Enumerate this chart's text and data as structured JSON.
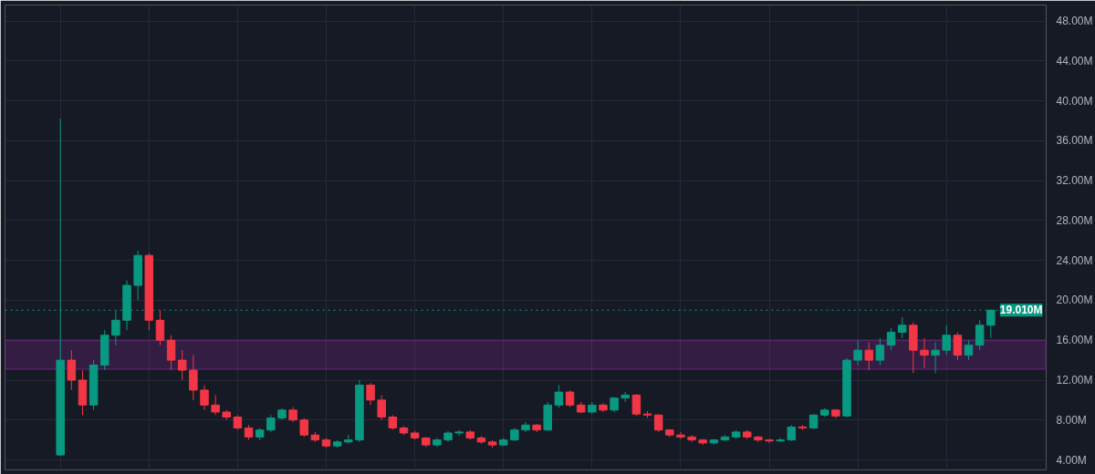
{
  "chart_data": {
    "type": "candlestick",
    "categories": [
      null,
      null,
      null,
      null,
      null,
      null,
      null,
      null,
      null,
      null,
      null,
      null,
      null,
      null,
      null,
      null,
      null,
      null,
      null,
      null,
      null,
      null,
      null,
      null,
      null,
      null,
      null,
      null,
      null,
      null,
      null,
      null,
      null,
      null,
      null,
      null,
      null,
      null,
      null,
      null,
      null,
      null,
      null,
      null,
      null,
      null,
      null,
      null,
      null,
      null,
      null,
      null,
      null,
      null,
      null,
      null,
      null,
      null,
      null,
      null,
      null,
      null,
      null,
      null,
      null,
      null,
      null,
      null,
      null,
      null,
      null,
      null,
      null,
      null,
      null,
      null,
      null,
      null,
      null,
      null,
      null,
      null,
      null,
      null,
      null
    ],
    "ohlc": [
      [
        4.5,
        38.2,
        4.4,
        14
      ],
      [
        14,
        15,
        11,
        12
      ],
      [
        12,
        13,
        8.5,
        9.5
      ],
      [
        9.5,
        14,
        9,
        13.5
      ],
      [
        13.5,
        17,
        13,
        16.5
      ],
      [
        16.5,
        19,
        15.5,
        18
      ],
      [
        18,
        22,
        17,
        21.5
      ],
      [
        21.5,
        25,
        20,
        24.5
      ],
      [
        24.5,
        24.7,
        17,
        18
      ],
      [
        18,
        19,
        15.5,
        16
      ],
      [
        16,
        16.5,
        13,
        14
      ],
      [
        14,
        15,
        12,
        13
      ],
      [
        13,
        14.5,
        10,
        11
      ],
      [
        11,
        11.5,
        9,
        9.5
      ],
      [
        9.5,
        10.5,
        8.5,
        8.8
      ],
      [
        8.8,
        9,
        8,
        8.3
      ],
      [
        8.3,
        8.5,
        7,
        7.2
      ],
      [
        7.2,
        7.5,
        6,
        6.3
      ],
      [
        6.3,
        7.2,
        6,
        7
      ],
      [
        7,
        8.5,
        6.8,
        8.2
      ],
      [
        8.2,
        9.2,
        8,
        9
      ],
      [
        9,
        9.3,
        7.8,
        8
      ],
      [
        8,
        8.2,
        6.3,
        6.5
      ],
      [
        6.5,
        6.8,
        5.8,
        6
      ],
      [
        6,
        6.2,
        5.2,
        5.4
      ],
      [
        5.4,
        6,
        5.2,
        5.8
      ],
      [
        5.8,
        6.5,
        5.6,
        6
      ],
      [
        6,
        12,
        5.8,
        11.5
      ],
      [
        11.5,
        11.7,
        9.5,
        10
      ],
      [
        10,
        10.5,
        8,
        8.3
      ],
      [
        8.3,
        8.5,
        7,
        7.2
      ],
      [
        7.2,
        7.4,
        6.5,
        6.7
      ],
      [
        6.7,
        6.9,
        6,
        6.2
      ],
      [
        6.2,
        6.3,
        5.3,
        5.5
      ],
      [
        5.5,
        6.2,
        5.3,
        6
      ],
      [
        6,
        6.9,
        5.8,
        6.7
      ],
      [
        6.7,
        7,
        6.4,
        6.8
      ],
      [
        6.8,
        7,
        6,
        6.2
      ],
      [
        6.2,
        6.4,
        5.6,
        5.8
      ],
      [
        5.8,
        6,
        5.2,
        5.5
      ],
      [
        5.5,
        6.2,
        5.4,
        6
      ],
      [
        6,
        7.2,
        5.9,
        7
      ],
      [
        7,
        7.8,
        6.8,
        7.5
      ],
      [
        7.5,
        7.6,
        6.8,
        7
      ],
      [
        7,
        9.8,
        6.9,
        9.5
      ],
      [
        9.5,
        11.5,
        9.2,
        10.8
      ],
      [
        10.8,
        11,
        9.3,
        9.5
      ],
      [
        9.5,
        9.8,
        8.7,
        8.8
      ],
      [
        8.8,
        9.8,
        8.6,
        9.5
      ],
      [
        9.5,
        9.7,
        8.8,
        9
      ],
      [
        9,
        10.3,
        8.8,
        10.2
      ],
      [
        10.2,
        10.8,
        9.8,
        10.5
      ],
      [
        10.5,
        10.6,
        8.4,
        8.6
      ],
      [
        8.6,
        8.9,
        8.2,
        8.5
      ],
      [
        8.5,
        8.6,
        6.8,
        7
      ],
      [
        7,
        7.1,
        6.3,
        6.5
      ],
      [
        6.5,
        6.8,
        6.1,
        6.3
      ],
      [
        6.3,
        6.5,
        5.8,
        6
      ],
      [
        6,
        6.1,
        5.5,
        5.7
      ],
      [
        5.7,
        6.1,
        5.5,
        6
      ],
      [
        6,
        6.5,
        5.9,
        6.3
      ],
      [
        6.3,
        7,
        6.1,
        6.8
      ],
      [
        6.8,
        7,
        6.1,
        6.3
      ],
      [
        6.3,
        6.4,
        5.8,
        6
      ],
      [
        6,
        6.1,
        5.7,
        5.9
      ],
      [
        5.9,
        6.2,
        5.8,
        6
      ],
      [
        6,
        7.5,
        5.9,
        7.3
      ],
      [
        7.3,
        7.5,
        7,
        7.2
      ],
      [
        7.2,
        8.6,
        7.1,
        8.5
      ],
      [
        8.5,
        9.2,
        8.3,
        9
      ],
      [
        9,
        9.1,
        8.2,
        8.4
      ],
      [
        8.4,
        14.2,
        8.3,
        14
      ],
      [
        14,
        16,
        13.5,
        15
      ],
      [
        15,
        15.8,
        13,
        14
      ],
      [
        14,
        16.2,
        13.5,
        15.5
      ],
      [
        15.5,
        17.2,
        15,
        16.8
      ],
      [
        16.8,
        18.3,
        16.2,
        17.5
      ],
      [
        17.5,
        17.8,
        12.7,
        15
      ],
      [
        15,
        16.2,
        13.2,
        14.5
      ],
      [
        14.5,
        15.8,
        12.7,
        15
      ],
      [
        15,
        17.5,
        14.5,
        16.5
      ],
      [
        16.5,
        16.8,
        14,
        14.5
      ],
      [
        14.5,
        16,
        14,
        15.5
      ],
      [
        15.5,
        18,
        15,
        17.5
      ],
      [
        17.5,
        19.01,
        16.2,
        19.01
      ]
    ],
    "ylim": [
      3.0,
      49.6
    ],
    "yticks": [
      {
        "value": 4,
        "label": "4.00M"
      },
      {
        "value": 8,
        "label": "8.00M"
      },
      {
        "value": 12,
        "label": "12.00M"
      },
      {
        "value": 16,
        "label": "16.00M"
      },
      {
        "value": 20,
        "label": "20.00M"
      },
      {
        "value": 24,
        "label": "24.00M"
      },
      {
        "value": 28,
        "label": "28.00M"
      },
      {
        "value": 32,
        "label": "32.00M"
      },
      {
        "value": 36,
        "label": "36.00M"
      },
      {
        "value": 40,
        "label": "40.00M"
      },
      {
        "value": 44,
        "label": "44.00M"
      },
      {
        "value": 48,
        "label": "48.00M"
      }
    ],
    "ref_lines": [
      {
        "axis": "y",
        "value": 19.01,
        "label": "19.010M",
        "color": "#089981",
        "line_style": "dotted"
      }
    ],
    "bands": [
      {
        "axis": "y",
        "from": 13.1,
        "to": 16.0,
        "color": "#9c27b0"
      }
    ],
    "grid": true
  }
}
